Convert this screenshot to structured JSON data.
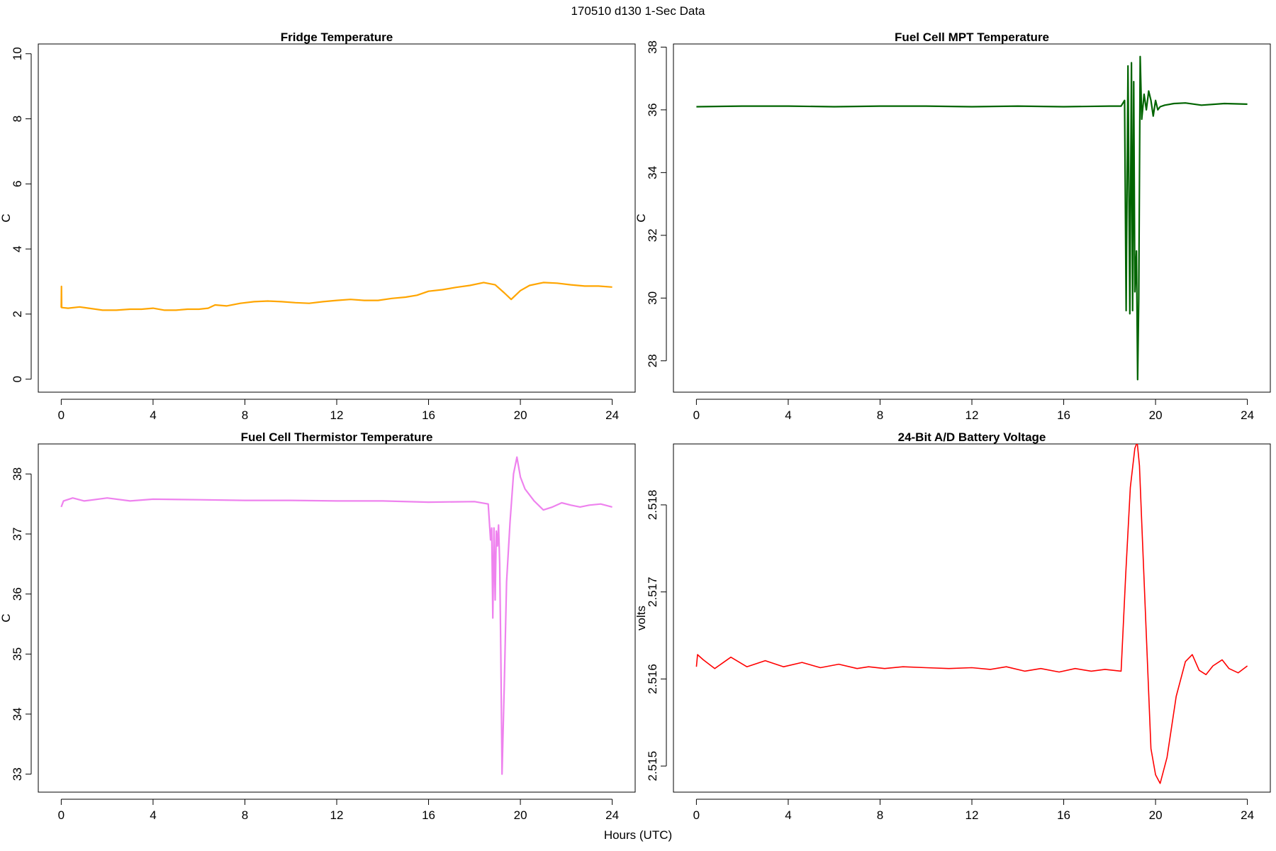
{
  "header": {
    "title": "170510   d130   1-Sec Data"
  },
  "footer": {
    "xlabel": "Hours (UTC)"
  },
  "chart_data": [
    {
      "type": "line",
      "title": "Fridge Temperature",
      "ylabel": "C",
      "xlabel": "",
      "xlim": [
        -1,
        25
      ],
      "ylim": [
        -0.4,
        10.3
      ],
      "xticks": [
        0,
        4,
        8,
        12,
        16,
        20,
        24
      ],
      "yticks": [
        0,
        2,
        4,
        6,
        8,
        10
      ],
      "color": "#FFA500",
      "grid": false,
      "series": [
        {
          "x": [
            0,
            0.01,
            0.02,
            0.3,
            0.8,
            1.2,
            1.8,
            2.4,
            3,
            3.5,
            4,
            4.5,
            5,
            5.5,
            6,
            6.4,
            6.7,
            7.2,
            7.8,
            8.4,
            9,
            9.6,
            10.2,
            10.8,
            11.4,
            12,
            12.6,
            13.2,
            13.8,
            14.4,
            15,
            15.5,
            16,
            16.6,
            17.2,
            17.8,
            18.4,
            18.9,
            19.3,
            19.6,
            20,
            20.4,
            21,
            21.6,
            22.2,
            22.8,
            23.4,
            24
          ],
          "y": [
            2.2,
            2.85,
            2.2,
            2.18,
            2.22,
            2.18,
            2.12,
            2.12,
            2.15,
            2.15,
            2.18,
            2.12,
            2.12,
            2.15,
            2.15,
            2.18,
            2.28,
            2.25,
            2.33,
            2.38,
            2.4,
            2.38,
            2.35,
            2.33,
            2.38,
            2.42,
            2.45,
            2.42,
            2.42,
            2.48,
            2.52,
            2.58,
            2.7,
            2.75,
            2.82,
            2.88,
            2.97,
            2.9,
            2.65,
            2.45,
            2.72,
            2.88,
            2.97,
            2.95,
            2.9,
            2.86,
            2.86,
            2.83
          ]
        }
      ]
    },
    {
      "type": "line",
      "title": "Fuel Cell MPT Temperature",
      "ylabel": "C",
      "xlabel": "",
      "xlim": [
        -1,
        25
      ],
      "ylim": [
        27,
        38.1
      ],
      "xticks": [
        0,
        4,
        8,
        12,
        16,
        20,
        24
      ],
      "yticks": [
        28,
        30,
        32,
        34,
        36,
        38
      ],
      "color": "#006400",
      "grid": false,
      "series": [
        {
          "x": [
            0,
            2,
            4,
            6,
            8,
            10,
            12,
            14,
            16,
            18,
            18.5,
            18.65,
            18.72,
            18.8,
            18.88,
            18.95,
            19.0,
            19.05,
            19.1,
            19.17,
            19.22,
            19.27,
            19.33,
            19.4,
            19.5,
            19.6,
            19.7,
            19.8,
            19.9,
            20.0,
            20.1,
            20.2,
            20.4,
            20.8,
            21.3,
            22,
            23,
            24
          ],
          "y": [
            36.1,
            36.12,
            36.12,
            36.1,
            36.12,
            36.12,
            36.1,
            36.12,
            36.1,
            36.12,
            36.12,
            36.3,
            29.6,
            37.4,
            29.5,
            37.5,
            29.6,
            36.9,
            30.2,
            31.5,
            27.4,
            30.0,
            37.7,
            35.7,
            36.5,
            36.0,
            36.6,
            36.3,
            35.8,
            36.3,
            36.0,
            36.1,
            36.15,
            36.2,
            36.22,
            36.15,
            36.2,
            36.18
          ]
        }
      ]
    },
    {
      "type": "line",
      "title": "Fuel Cell Thermistor Temperature",
      "ylabel": "C",
      "xlabel": "",
      "xlim": [
        -1,
        25
      ],
      "ylim": [
        32.7,
        38.5
      ],
      "xticks": [
        0,
        4,
        8,
        12,
        16,
        20,
        24
      ],
      "yticks": [
        33,
        34,
        35,
        36,
        37,
        38
      ],
      "color": "#EE82EE",
      "grid": false,
      "series": [
        {
          "x": [
            0,
            0.1,
            0.5,
            1,
            2,
            3,
            4,
            6,
            8,
            10,
            12,
            14,
            16,
            18,
            18.6,
            18.7,
            18.75,
            18.8,
            18.85,
            18.9,
            18.95,
            19.0,
            19.05,
            19.1,
            19.15,
            19.2,
            19.3,
            19.4,
            19.55,
            19.7,
            19.85,
            20.0,
            20.2,
            20.6,
            21,
            21.4,
            21.8,
            22.2,
            22.6,
            23,
            23.5,
            24
          ],
          "y": [
            37.45,
            37.55,
            37.6,
            37.55,
            37.6,
            37.55,
            37.58,
            37.57,
            37.56,
            37.56,
            37.55,
            37.55,
            37.53,
            37.54,
            37.5,
            36.9,
            37.1,
            35.6,
            37.1,
            35.9,
            37.05,
            36.8,
            37.15,
            36.5,
            35.0,
            33.0,
            34.5,
            36.2,
            37.2,
            38.0,
            38.28,
            37.95,
            37.75,
            37.55,
            37.4,
            37.45,
            37.52,
            37.48,
            37.45,
            37.48,
            37.5,
            37.45
          ]
        }
      ]
    },
    {
      "type": "line",
      "title": "24-Bit A/D Battery Voltage",
      "ylabel": "volts",
      "xlabel": "",
      "xlim": [
        -1,
        25
      ],
      "ylim": [
        2.5147,
        2.5187
      ],
      "xticks": [
        0,
        4,
        8,
        12,
        16,
        20,
        24
      ],
      "yticks": [
        2.515,
        2.516,
        2.517,
        2.518
      ],
      "color": "#FF0000",
      "grid": false,
      "series": [
        {
          "x": [
            0,
            0.05,
            0.3,
            0.8,
            1.5,
            2.2,
            3,
            3.8,
            4.6,
            5.4,
            6.2,
            7,
            7.5,
            8.2,
            9,
            10,
            11,
            12,
            12.8,
            13.5,
            14.3,
            15,
            15.8,
            16.5,
            17.2,
            17.8,
            18.5,
            18.7,
            18.9,
            19.1,
            19.2,
            19.3,
            19.4,
            19.6,
            19.8,
            20.0,
            20.2,
            20.5,
            20.9,
            21.3,
            21.6,
            21.9,
            22.2,
            22.5,
            22.9,
            23.2,
            23.6,
            24
          ],
          "y": [
            2.51614,
            2.51628,
            2.51622,
            2.51612,
            2.51625,
            2.51614,
            2.51621,
            2.51614,
            2.51619,
            2.51613,
            2.51617,
            2.51612,
            2.51614,
            2.51612,
            2.51614,
            2.51613,
            2.51612,
            2.51613,
            2.51611,
            2.51614,
            2.51609,
            2.51612,
            2.51608,
            2.51612,
            2.51609,
            2.51611,
            2.51609,
            2.5172,
            2.5182,
            2.51865,
            2.51872,
            2.51845,
            2.5178,
            2.5165,
            2.5152,
            2.5149,
            2.5148,
            2.5151,
            2.5158,
            2.5162,
            2.51628,
            2.5161,
            2.51605,
            2.51615,
            2.51622,
            2.51612,
            2.51607,
            2.51615
          ]
        }
      ]
    }
  ]
}
